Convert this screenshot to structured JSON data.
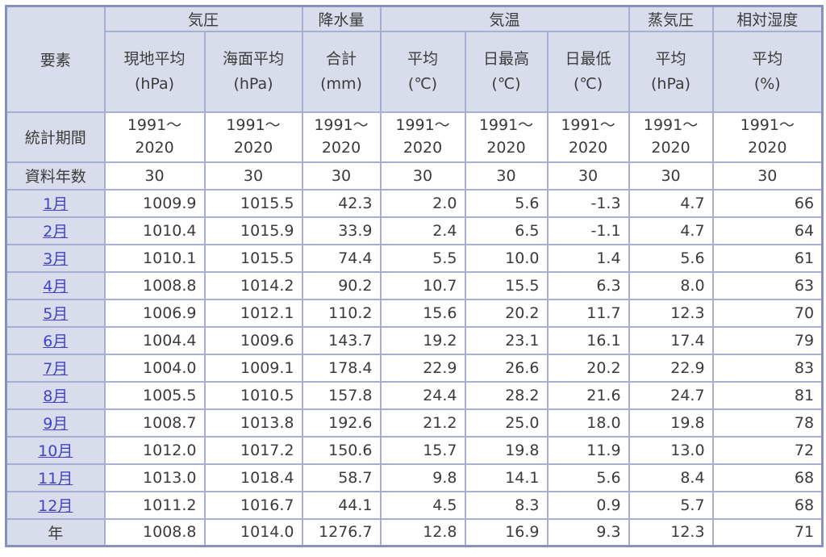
{
  "table": {
    "corner_label": "要素",
    "groups": [
      {
        "label": "気圧",
        "span": 2
      },
      {
        "label": "降水量",
        "span": 1
      },
      {
        "label": "気温",
        "span": 3
      },
      {
        "label": "蒸気圧",
        "span": 1
      },
      {
        "label": "相対湿度",
        "span": 1
      }
    ],
    "subheaders": [
      {
        "label": "現地平均",
        "unit": "(hPa)"
      },
      {
        "label": "海面平均",
        "unit": "(hPa)"
      },
      {
        "label": "合計",
        "unit": "(mm)"
      },
      {
        "label": "平均",
        "unit": "(℃)"
      },
      {
        "label": "日最高",
        "unit": "(℃)"
      },
      {
        "label": "日最低",
        "unit": "(℃)"
      },
      {
        "label": "平均",
        "unit": "(hPa)"
      },
      {
        "label": "平均",
        "unit": "(%)"
      }
    ],
    "stat_period": {
      "label": "統計期間",
      "value_lines": [
        "1991～",
        "2020"
      ]
    },
    "record_years": {
      "label": "資料年数",
      "value": "30"
    },
    "rows": [
      {
        "label": "1月",
        "link": true,
        "values": [
          "1009.9",
          "1015.5",
          "42.3",
          "2.0",
          "5.6",
          "-1.3",
          "4.7",
          "66"
        ]
      },
      {
        "label": "2月",
        "link": true,
        "values": [
          "1010.4",
          "1015.9",
          "33.9",
          "2.4",
          "6.5",
          "-1.1",
          "4.7",
          "64"
        ]
      },
      {
        "label": "3月",
        "link": true,
        "values": [
          "1010.1",
          "1015.5",
          "74.4",
          "5.5",
          "10.0",
          "1.4",
          "5.6",
          "61"
        ]
      },
      {
        "label": "4月",
        "link": true,
        "values": [
          "1008.8",
          "1014.2",
          "90.2",
          "10.7",
          "15.5",
          "6.3",
          "8.0",
          "63"
        ]
      },
      {
        "label": "5月",
        "link": true,
        "values": [
          "1006.9",
          "1012.1",
          "110.2",
          "15.6",
          "20.2",
          "11.7",
          "12.3",
          "70"
        ]
      },
      {
        "label": "6月",
        "link": true,
        "values": [
          "1004.4",
          "1009.6",
          "143.7",
          "19.2",
          "23.1",
          "16.1",
          "17.4",
          "79"
        ]
      },
      {
        "label": "7月",
        "link": true,
        "values": [
          "1004.0",
          "1009.1",
          "178.4",
          "22.9",
          "26.6",
          "20.2",
          "22.9",
          "83"
        ]
      },
      {
        "label": "8月",
        "link": true,
        "values": [
          "1005.5",
          "1010.5",
          "157.8",
          "24.4",
          "28.2",
          "21.6",
          "24.7",
          "81"
        ]
      },
      {
        "label": "9月",
        "link": true,
        "values": [
          "1008.7",
          "1013.8",
          "192.6",
          "21.2",
          "25.0",
          "18.0",
          "19.8",
          "78"
        ]
      },
      {
        "label": "10月",
        "link": true,
        "values": [
          "1012.0",
          "1017.2",
          "150.6",
          "15.7",
          "19.8",
          "11.9",
          "13.0",
          "72"
        ]
      },
      {
        "label": "11月",
        "link": true,
        "values": [
          "1013.0",
          "1018.4",
          "58.7",
          "9.8",
          "14.1",
          "5.6",
          "8.4",
          "68"
        ]
      },
      {
        "label": "12月",
        "link": true,
        "values": [
          "1011.2",
          "1016.7",
          "44.1",
          "4.5",
          "8.3",
          "0.9",
          "5.7",
          "68"
        ]
      },
      {
        "label": "年",
        "link": false,
        "values": [
          "1008.8",
          "1014.0",
          "1276.7",
          "12.8",
          "16.9",
          "9.3",
          "12.3",
          "71"
        ]
      }
    ],
    "colors": {
      "header_bg": "#d9ddeb",
      "border_light": "#a6afd0",
      "border_dark": "#8791bc",
      "link": "#4341c6",
      "text": "#3b3b3b",
      "cell_bg": "#ffffff"
    }
  }
}
